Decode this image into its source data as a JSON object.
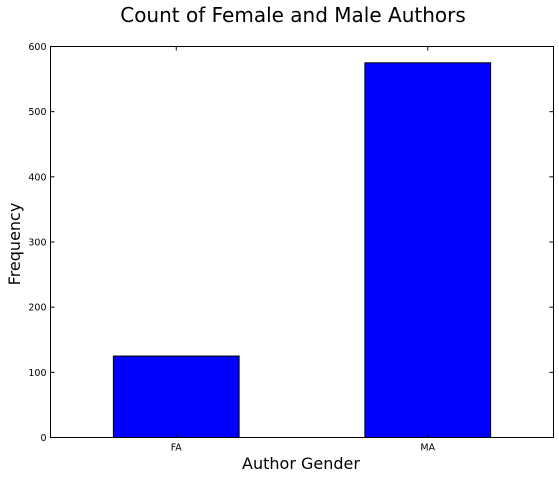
{
  "chart_data": {
    "type": "bar",
    "title": "Count of Female and Male Authors",
    "xlabel": "Author Gender",
    "ylabel": "Frequency",
    "categories": [
      "FA",
      "MA"
    ],
    "values": [
      125,
      575
    ],
    "ylim": [
      0,
      600
    ],
    "yticks": [
      0,
      100,
      200,
      300,
      400,
      500,
      600
    ],
    "grid": false,
    "legend": "none",
    "colors": {
      "bar_fill": "#0000ff",
      "bar_edge": "#000000",
      "axes_edge": "#000000",
      "background": "#ffffff"
    }
  }
}
